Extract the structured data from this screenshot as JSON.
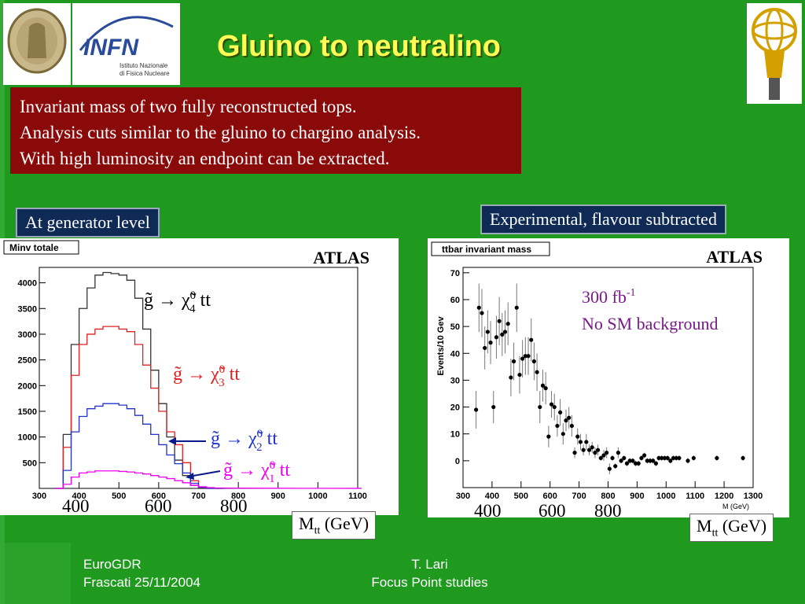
{
  "slide": {
    "title": "Gluino to neutralino",
    "bullets": [
      "Invariant mass of two fully reconstructed tops.",
      "Analysis cuts similar to the gluino to chargino analysis.",
      "With high luminosity an endpoint can be extracted."
    ],
    "logo_text": {
      "infn": "INFN",
      "infn_sub1": "Istituto Nazionale",
      "infn_sub2": "di Fisica Nucleare"
    },
    "left_label": "At generator level",
    "right_label": "Experimental, flavour subtracted",
    "left_caption": "M",
    "left_caption_sub": "tt",
    "left_caption_unit": "(GeV)",
    "right_caption": "M",
    "right_caption_sub": "tt",
    "right_caption_unit": "(GeV)",
    "footer_left": [
      "EuroGDR",
      "Frascati 25/11/2004"
    ],
    "footer_right": [
      "T. Lari",
      "Focus Point studies"
    ],
    "colors": {
      "background": "#1f9a1f",
      "title": "#ffff55",
      "box": "#8a0a0a",
      "label": "#0e2a55"
    }
  },
  "chart_data": [
    {
      "type": "line",
      "title": "Minv totale",
      "watermark": "ATLAS",
      "xlim": [
        300,
        1100
      ],
      "ylim": [
        0,
        4300
      ],
      "xticks": [
        300,
        400,
        500,
        600,
        700,
        800,
        900,
        1000,
        1100
      ],
      "yticks": [
        500,
        1000,
        1500,
        2000,
        2500,
        3000,
        3500,
        4000
      ],
      "extra_xlabels": [
        "400",
        "600",
        "800"
      ],
      "series": [
        {
          "name": "g̃ → χ̃⁰₄ tt",
          "label_parts": [
            "g̃ → χ̃",
            "0",
            "4",
            " tt"
          ],
          "color": "#333333",
          "x": [
            350,
            370,
            390,
            410,
            430,
            450,
            470,
            490,
            510,
            530,
            550,
            570,
            590,
            610,
            630,
            650,
            670,
            690,
            710,
            730,
            750
          ],
          "y": [
            0,
            1050,
            2800,
            3500,
            3900,
            4150,
            4200,
            4180,
            4150,
            4050,
            3700,
            3100,
            2300,
            1650,
            1000,
            550,
            250,
            60,
            10,
            0,
            0
          ]
        },
        {
          "name": "g̃ → χ̃⁰₃ tt",
          "label_parts": [
            "g̃ → χ̃",
            "0",
            "3",
            " tt"
          ],
          "color": "#dd2222",
          "x": [
            350,
            370,
            390,
            410,
            430,
            450,
            470,
            490,
            510,
            530,
            550,
            570,
            590,
            610,
            630,
            650,
            670,
            690,
            710,
            730,
            750
          ],
          "y": [
            0,
            800,
            2200,
            2800,
            3000,
            3100,
            3150,
            3150,
            3100,
            3050,
            2800,
            2400,
            1950,
            1500,
            1100,
            850,
            500,
            150,
            30,
            0,
            0
          ]
        },
        {
          "name": "g̃ → χ̃⁰₂ tt",
          "label_parts": [
            "g̃ → χ̃",
            "0",
            "2",
            " tt"
          ],
          "color": "#2233cc",
          "x": [
            350,
            370,
            390,
            410,
            430,
            450,
            470,
            490,
            510,
            530,
            550,
            570,
            590,
            610,
            630,
            650,
            670,
            690,
            710,
            730,
            750
          ],
          "y": [
            0,
            350,
            1100,
            1400,
            1550,
            1600,
            1650,
            1650,
            1620,
            1550,
            1420,
            1250,
            1050,
            850,
            650,
            480,
            300,
            100,
            20,
            0,
            0
          ]
        },
        {
          "name": "g̃ → χ̃⁰₁ tt",
          "label_parts": [
            "g̃ → χ̃",
            "0",
            "1",
            " tt"
          ],
          "color": "#ee00ee",
          "x": [
            350,
            370,
            390,
            410,
            430,
            450,
            470,
            490,
            510,
            530,
            550,
            570,
            590,
            610,
            630,
            650,
            670,
            690,
            710,
            730,
            750,
            800,
            900,
            1000,
            1100
          ],
          "y": [
            0,
            80,
            220,
            300,
            320,
            340,
            340,
            340,
            330,
            320,
            300,
            280,
            250,
            220,
            190,
            150,
            110,
            60,
            30,
            15,
            8,
            5,
            3,
            2,
            1
          ]
        }
      ]
    },
    {
      "type": "scatter",
      "title": "ttbar invariant mass",
      "watermark": "ATLAS",
      "ylabel": "Events/10 Gev",
      "xlabel": "M (GeV)",
      "xlim": [
        300,
        1300
      ],
      "ylim": [
        -10,
        72
      ],
      "xticks": [
        300,
        400,
        500,
        600,
        700,
        800,
        900,
        1000,
        1100,
        1200,
        1300
      ],
      "yticks": [
        0,
        10,
        20,
        30,
        40,
        50,
        60,
        70
      ],
      "extra_xlabels": [
        "400",
        "600",
        "800"
      ],
      "annotation_lum": "300 fb",
      "annotation_lum_sup": "-1",
      "annotation_bg": "No SM background",
      "points": {
        "x": [
          345,
          355,
          365,
          375,
          385,
          395,
          405,
          415,
          425,
          435,
          445,
          455,
          465,
          475,
          485,
          495,
          505,
          515,
          525,
          535,
          545,
          555,
          565,
          575,
          585,
          595,
          605,
          615,
          625,
          635,
          645,
          655,
          665,
          675,
          685,
          695,
          705,
          715,
          725,
          735,
          745,
          755,
          765,
          775,
          785,
          795,
          805,
          815,
          825,
          835,
          845,
          855,
          865,
          875,
          885,
          895,
          905,
          915,
          925,
          935,
          945,
          955,
          965,
          975,
          985,
          995,
          1005,
          1015,
          1025,
          1035,
          1045,
          1075,
          1095,
          1175,
          1265
        ],
        "y": [
          19,
          57,
          55,
          42,
          48,
          44,
          20,
          46,
          52,
          47,
          48,
          51,
          31,
          37,
          57,
          32,
          38,
          39,
          39,
          45,
          37,
          33,
          20,
          28,
          27,
          9,
          21,
          20,
          13,
          18,
          10,
          15,
          16,
          13,
          3,
          9,
          7,
          4,
          7,
          4,
          5,
          3,
          4,
          1,
          2,
          3,
          -3,
          1,
          -2,
          3,
          0,
          1,
          -1,
          0,
          0,
          -1,
          -1,
          1,
          2,
          0,
          0,
          0,
          -1,
          1,
          1,
          1,
          1,
          0,
          1,
          1,
          1,
          0,
          1,
          1,
          1
        ],
        "err": [
          7,
          9,
          9,
          8,
          8,
          8,
          6,
          8,
          9,
          8,
          8,
          8,
          7,
          7,
          9,
          7,
          7,
          7,
          7,
          8,
          7,
          7,
          6,
          6,
          6,
          4,
          5,
          5,
          4,
          5,
          4,
          4,
          4,
          4,
          2,
          3,
          3,
          2,
          3,
          2,
          2,
          2,
          2,
          1,
          2,
          2,
          2,
          1,
          1,
          2,
          1,
          1,
          1,
          1,
          1,
          1,
          1,
          1,
          1,
          1,
          1,
          1,
          1,
          1,
          1,
          1,
          1,
          1,
          1,
          1,
          1,
          1,
          1,
          1,
          1
        ]
      }
    }
  ]
}
